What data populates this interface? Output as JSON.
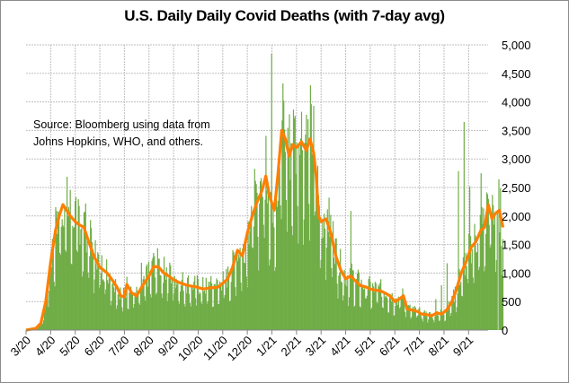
{
  "chart_data": {
    "type": "bar+line",
    "title": "U.S. Daily Daily Covid Deaths (with 7-day avg)",
    "annotation": [
      "Source:  Bloomberg using data from",
      "Johns Hopkins, WHO, and others."
    ],
    "xlabel": "",
    "ylabel": "",
    "ylim": [
      0,
      5000
    ],
    "yticks": [
      0,
      500,
      1000,
      1500,
      2000,
      2500,
      3000,
      3500,
      4000,
      4500,
      5000
    ],
    "ytick_labels": [
      "0",
      "500",
      "1,000",
      "1,500",
      "2,000",
      "2,500",
      "3,000",
      "3,500",
      "4,000",
      "4,500",
      "5,000"
    ],
    "y_axis_side": "right",
    "x_range_months": [
      0,
      19.5
    ],
    "xtick_labels": [
      "3/20",
      "4/20",
      "5/20",
      "6/20",
      "7/20",
      "8/20",
      "9/20",
      "10/20",
      "11/20",
      "12/20",
      "1/21",
      "2/21",
      "3/21",
      "4/21",
      "5/21",
      "6/21",
      "7/21",
      "8/21",
      "9/21"
    ],
    "grid": "both, dotted",
    "legend": "none",
    "colors": {
      "daily": "#70ad47",
      "avg": "#ff7f00"
    },
    "series": [
      {
        "name": "Daily deaths",
        "type": "bar",
        "note": "Daily values, highly volatile with weekly reporting pattern; peaks near 5,000 in Jan-Feb 2021",
        "x_months": [
          0.0,
          0.3,
          0.5,
          0.6,
          0.7,
          0.8,
          0.9,
          1.0,
          1.1,
          1.2,
          1.3,
          1.4,
          1.5,
          1.6,
          1.7,
          1.8,
          2.0,
          2.2,
          2.4,
          2.6,
          2.8,
          3.0,
          3.2,
          3.4,
          3.6,
          3.8,
          4.0,
          4.2,
          4.4,
          4.6,
          4.8,
          5.0,
          5.2,
          5.4,
          5.6,
          5.8,
          6.0,
          6.2,
          6.4,
          6.6,
          6.8,
          7.0,
          7.2,
          7.4,
          7.6,
          7.8,
          8.0,
          8.2,
          8.4,
          8.6,
          8.8,
          9.0,
          9.2,
          9.4,
          9.6,
          9.8,
          10.0,
          10.2,
          10.4,
          10.6,
          10.8,
          11.0,
          11.2,
          11.4,
          11.6,
          11.8,
          12.0,
          12.2,
          12.4,
          12.6,
          12.8,
          13.0,
          13.2,
          13.4,
          13.6,
          13.8,
          14.0,
          14.2,
          14.4,
          14.6,
          14.8,
          15.0,
          15.2,
          15.4,
          15.6,
          15.8,
          16.0,
          16.2,
          16.4,
          16.6,
          16.8,
          17.0,
          17.2,
          17.4,
          17.6,
          17.8,
          18.0,
          18.2,
          18.4,
          18.6,
          18.8,
          19.0,
          19.2,
          19.4
        ],
        "values": [
          0,
          20,
          60,
          150,
          300,
          700,
          1100,
          1500,
          1900,
          2300,
          2500,
          2600,
          2200,
          2100,
          2550,
          2000,
          1900,
          1700,
          1500,
          1200,
          1000,
          1300,
          800,
          700,
          900,
          2300,
          600,
          1000,
          800,
          1300,
          1400,
          1200,
          1100,
          1300,
          1000,
          900,
          800,
          1000,
          700,
          900,
          800,
          1300,
          800,
          900,
          1100,
          1500,
          1700,
          1300,
          2000,
          2200,
          2800,
          3000,
          2600,
          3200,
          3900,
          4400,
          5000,
          4100,
          3700,
          4200,
          5000,
          4800,
          3500,
          3000,
          2400,
          2100,
          1800,
          1500,
          1300,
          1100,
          1000,
          900,
          2500,
          800,
          900,
          900,
          700,
          800,
          600,
          900,
          600,
          400,
          500,
          400,
          300,
          300,
          400,
          300,
          500,
          700,
          600,
          1200,
          1700,
          2400,
          3300,
          3900,
          2800,
          4400,
          3500,
          3100,
          2500,
          1100
        ]
      },
      {
        "name": "7-day average",
        "type": "line",
        "x_months": [
          0.0,
          0.4,
          0.6,
          0.8,
          1.0,
          1.2,
          1.35,
          1.5,
          1.65,
          1.8,
          2.0,
          2.15,
          2.35,
          2.55,
          2.75,
          3.0,
          3.3,
          3.55,
          3.7,
          3.85,
          4.0,
          4.1,
          4.3,
          4.5,
          4.7,
          4.85,
          5.0,
          5.2,
          5.4,
          5.6,
          5.8,
          6.0,
          6.3,
          6.6,
          6.9,
          7.2,
          7.5,
          7.8,
          8.0,
          8.2,
          8.4,
          8.5,
          8.6,
          8.8,
          9.0,
          9.2,
          9.4,
          9.6,
          9.75,
          9.9,
          10.1,
          10.25,
          10.4,
          10.55,
          10.7,
          10.85,
          11.0,
          11.2,
          11.4,
          11.55,
          11.7,
          11.8,
          11.9,
          12.0,
          12.2,
          12.4,
          12.6,
          12.8,
          13.0,
          13.2,
          13.4,
          13.6,
          13.8,
          14.0,
          14.2,
          14.4,
          14.6,
          14.8,
          15.0,
          15.2,
          15.35,
          15.5,
          15.7,
          15.9,
          16.1,
          16.3,
          16.5,
          16.7,
          16.9,
          17.1,
          17.3,
          17.5,
          17.7,
          17.9,
          18.1,
          18.3,
          18.5,
          18.65,
          18.8,
          18.95,
          19.1,
          19.25,
          19.4
        ],
        "values": [
          0,
          30,
          120,
          500,
          1200,
          1750,
          2000,
          2200,
          2100,
          2000,
          1900,
          1850,
          1800,
          1550,
          1300,
          1100,
          1000,
          850,
          750,
          600,
          580,
          800,
          650,
          600,
          750,
          850,
          950,
          1120,
          1100,
          1000,
          950,
          880,
          820,
          780,
          760,
          720,
          740,
          750,
          820,
          900,
          1100,
          1250,
          1400,
          1300,
          1700,
          2000,
          2250,
          2450,
          2700,
          2350,
          2100,
          2750,
          3500,
          3350,
          3050,
          3250,
          3200,
          3300,
          3150,
          3350,
          3100,
          2700,
          2000,
          1900,
          1950,
          1700,
          1300,
          1050,
          900,
          950,
          860,
          780,
          760,
          720,
          700,
          690,
          650,
          600,
          500,
          550,
          600,
          370,
          350,
          330,
          280,
          270,
          250,
          300,
          280,
          350,
          480,
          700,
          1000,
          1200,
          1450,
          1550,
          1750,
          1800,
          2200,
          1950,
          2050,
          2100,
          1800
        ]
      }
    ]
  }
}
